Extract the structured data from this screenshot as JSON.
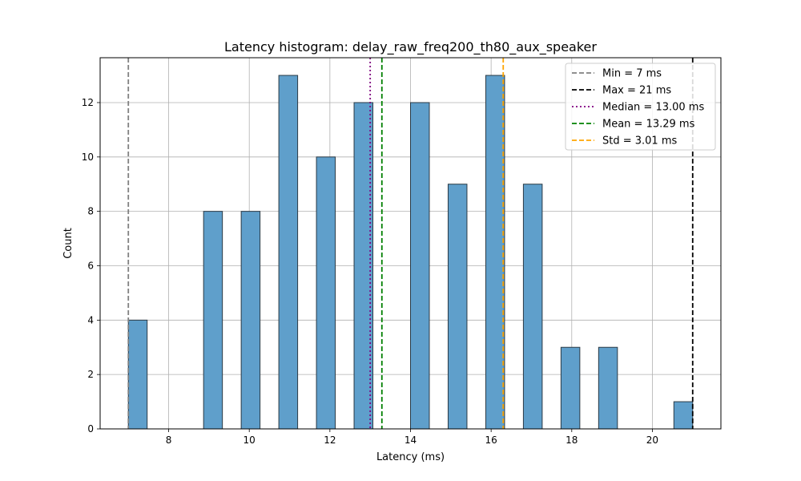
{
  "chart_data": {
    "type": "bar",
    "title": "Latency histogram: delay_raw_freq200_th80_aux_speaker",
    "xlabel": "Latency (ms)",
    "ylabel": "Count",
    "xlim": [
      6.3,
      21.7
    ],
    "ylim": [
      0,
      13.65
    ],
    "xticks": [
      8,
      10,
      12,
      14,
      16,
      18,
      20
    ],
    "yticks": [
      0,
      2,
      4,
      6,
      8,
      10,
      12
    ],
    "grid": true,
    "bar_color": "#5f9fcb",
    "bar_edge_color": "#2b3a45",
    "bins": [
      {
        "start": 7.0,
        "end": 7.4667,
        "count": 4
      },
      {
        "start": 7.9333,
        "end": 8.4,
        "count": 0
      },
      {
        "start": 8.8667,
        "end": 9.3333,
        "count": 8
      },
      {
        "start": 9.8,
        "end": 10.2667,
        "count": 8
      },
      {
        "start": 10.7333,
        "end": 11.2,
        "count": 13
      },
      {
        "start": 11.6667,
        "end": 12.1333,
        "count": 10
      },
      {
        "start": 12.6,
        "end": 13.0667,
        "count": 12
      },
      {
        "start": 13.5333,
        "end": 14.0,
        "count": 0
      },
      {
        "start": 14.0,
        "end": 14.4667,
        "count": 12
      },
      {
        "start": 14.9333,
        "end": 15.4,
        "count": 9
      },
      {
        "start": 15.8667,
        "end": 16.3333,
        "count": 13
      },
      {
        "start": 16.8,
        "end": 17.2667,
        "count": 9
      },
      {
        "start": 17.7333,
        "end": 18.2,
        "count": 3
      },
      {
        "start": 18.6667,
        "end": 19.1333,
        "count": 3
      },
      {
        "start": 19.6,
        "end": 20.0667,
        "count": 0
      },
      {
        "start": 20.5333,
        "end": 21.0,
        "count": 1
      }
    ],
    "reference_lines": [
      {
        "label": "Min = 7 ms",
        "x": 7.0,
        "color": "#808080",
        "style": "dashed"
      },
      {
        "label": "Max = 21 ms",
        "x": 21.0,
        "color": "#000000",
        "style": "dashed"
      },
      {
        "label": "Median = 13.00 ms",
        "x": 13.0,
        "color": "#800080",
        "style": "dotted"
      },
      {
        "label": "Mean = 13.29 ms",
        "x": 13.29,
        "color": "#008000",
        "style": "dashed"
      },
      {
        "label": "Std = 3.01 ms",
        "x": 16.3,
        "color": "#ffa500",
        "style": "dashed"
      }
    ],
    "legend_position": "top-right"
  }
}
